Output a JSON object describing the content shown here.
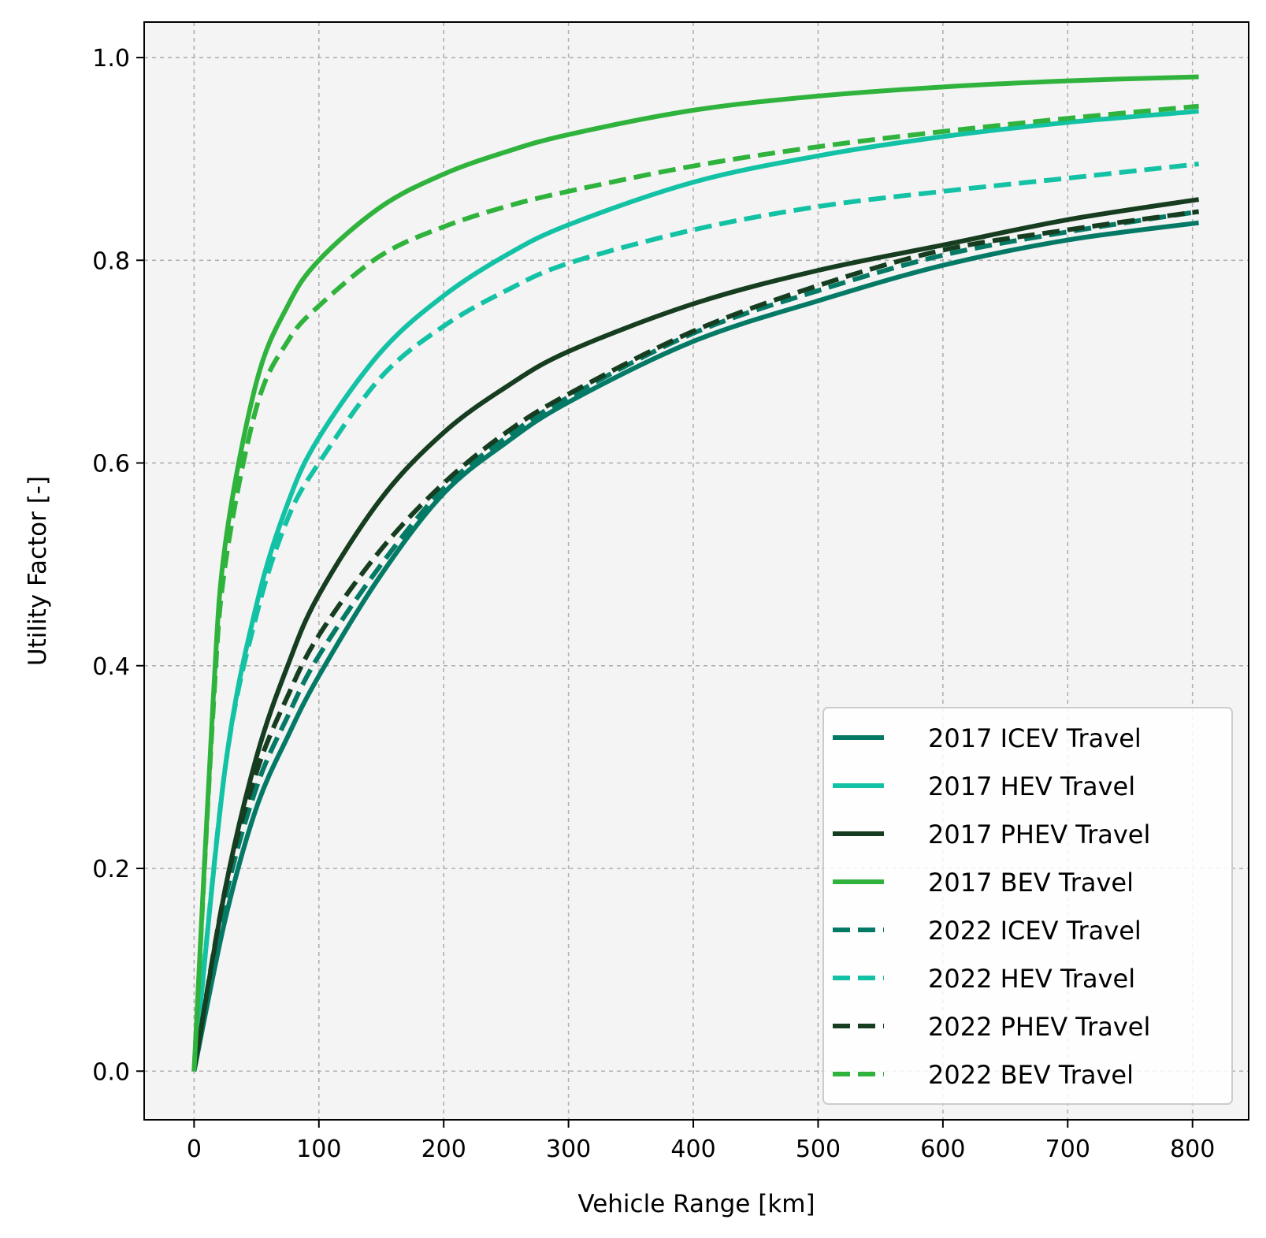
{
  "chart_data": {
    "type": "line",
    "title": "",
    "xlabel": "Vehicle Range [km]",
    "ylabel": "Utility Factor [-]",
    "xlim": [
      -40,
      845
    ],
    "ylim": [
      -0.048,
      1.035
    ],
    "xticks": [
      0,
      100,
      200,
      300,
      400,
      500,
      600,
      700,
      800
    ],
    "yticks": [
      0.0,
      0.2,
      0.4,
      0.6,
      0.8,
      1.0
    ],
    "xtick_labels": [
      "0",
      "100",
      "200",
      "300",
      "400",
      "500",
      "600",
      "700",
      "800"
    ],
    "ytick_labels": [
      "0.0",
      "0.2",
      "0.4",
      "0.6",
      "0.8",
      "1.0"
    ],
    "grid": true,
    "legend_position": "lower-right",
    "plot_background": "#f4f4f4",
    "series": [
      {
        "name": "2017 ICEV Travel",
        "color": "#047a66",
        "linestyle": "solid",
        "x": [
          0,
          25,
          50,
          75,
          100,
          150,
          200,
          250,
          300,
          400,
          500,
          600,
          700,
          805
        ],
        "y": [
          0,
          0.15,
          0.26,
          0.33,
          0.39,
          0.49,
          0.57,
          0.62,
          0.66,
          0.72,
          0.76,
          0.795,
          0.82,
          0.837
        ]
      },
      {
        "name": "2017 HEV Travel",
        "color": "#13c2a4",
        "linestyle": "solid",
        "x": [
          0,
          25,
          50,
          75,
          100,
          150,
          200,
          250,
          300,
          400,
          500,
          600,
          700,
          805
        ],
        "y": [
          0,
          0.3,
          0.46,
          0.56,
          0.625,
          0.71,
          0.765,
          0.805,
          0.835,
          0.877,
          0.903,
          0.922,
          0.936,
          0.947
        ]
      },
      {
        "name": "2017 PHEV Travel",
        "color": "#163d1f",
        "linestyle": "solid",
        "x": [
          0,
          25,
          50,
          75,
          100,
          150,
          200,
          250,
          300,
          400,
          500,
          600,
          700,
          805
        ],
        "y": [
          0,
          0.18,
          0.31,
          0.4,
          0.47,
          0.565,
          0.63,
          0.675,
          0.71,
          0.757,
          0.79,
          0.815,
          0.84,
          0.86
        ]
      },
      {
        "name": "2017 BEV Travel",
        "color": "#2fb33c",
        "linestyle": "solid",
        "x": [
          0,
          15,
          25,
          50,
          75,
          100,
          150,
          200,
          250,
          300,
          400,
          500,
          600,
          700,
          805
        ],
        "y": [
          0,
          0.36,
          0.52,
          0.68,
          0.755,
          0.8,
          0.853,
          0.885,
          0.907,
          0.924,
          0.948,
          0.962,
          0.971,
          0.977,
          0.981
        ]
      },
      {
        "name": "2022 ICEV Travel",
        "color": "#047a66",
        "linestyle": "dashed",
        "x": [
          0,
          25,
          50,
          75,
          100,
          150,
          200,
          250,
          300,
          400,
          500,
          600,
          700,
          805
        ],
        "y": [
          0,
          0.17,
          0.28,
          0.35,
          0.41,
          0.5,
          0.575,
          0.625,
          0.665,
          0.728,
          0.77,
          0.805,
          0.828,
          0.848
        ]
      },
      {
        "name": "2022 HEV Travel",
        "color": "#13c2a4",
        "linestyle": "dashed",
        "x": [
          0,
          25,
          50,
          75,
          100,
          150,
          200,
          250,
          300,
          400,
          500,
          600,
          700,
          805
        ],
        "y": [
          0,
          0.3,
          0.45,
          0.545,
          0.6,
          0.685,
          0.735,
          0.77,
          0.797,
          0.83,
          0.853,
          0.868,
          0.881,
          0.895
        ]
      },
      {
        "name": "2022 PHEV Travel",
        "color": "#163d1f",
        "linestyle": "dashed",
        "x": [
          0,
          25,
          50,
          75,
          100,
          150,
          200,
          250,
          300,
          400,
          500,
          600,
          700,
          805
        ],
        "y": [
          0,
          0.18,
          0.295,
          0.37,
          0.43,
          0.515,
          0.58,
          0.63,
          0.668,
          0.73,
          0.775,
          0.81,
          0.83,
          0.848
        ]
      },
      {
        "name": "2022 BEV Travel",
        "color": "#2fb33c",
        "linestyle": "dashed",
        "x": [
          0,
          15,
          25,
          50,
          75,
          100,
          150,
          200,
          250,
          300,
          400,
          500,
          600,
          700,
          805
        ],
        "y": [
          0,
          0.35,
          0.5,
          0.655,
          0.72,
          0.755,
          0.805,
          0.833,
          0.853,
          0.868,
          0.893,
          0.912,
          0.927,
          0.94,
          0.952
        ]
      }
    ]
  }
}
